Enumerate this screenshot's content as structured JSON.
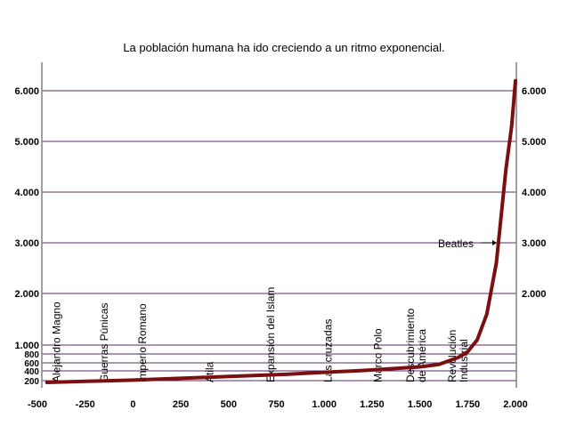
{
  "chart_data": {
    "type": "line",
    "title": "La población humana ha ido creciendo a un ritmo exponencial.",
    "xlabel": "",
    "ylabel": "",
    "xlim": [
      -500,
      2000
    ],
    "ylim": [
      0,
      6300
    ],
    "x_ticks": [
      -500,
      -250,
      0,
      250,
      500,
      750,
      1000,
      1250,
      1500,
      1750,
      2000
    ],
    "x_tick_labels": [
      "-500",
      "-250",
      "0",
      "250",
      "500",
      "750",
      "1.000",
      "1.250",
      "1.500",
      "1.750",
      "2.000"
    ],
    "y_ticks_major": [
      {
        "value": 6000,
        "label": "6.000"
      },
      {
        "value": 5000,
        "label": "5.000"
      },
      {
        "value": 4000,
        "label": "4.000"
      },
      {
        "value": 3000,
        "label": "3.000"
      },
      {
        "value": 2000,
        "label": "2.000"
      },
      {
        "value": 1000,
        "label": "1.000"
      }
    ],
    "y_ticks_minor": [
      {
        "value": 800,
        "label": "800"
      },
      {
        "value": 600,
        "label": "600"
      },
      {
        "value": 400,
        "label": "400"
      },
      {
        "value": 200,
        "label": "200"
      }
    ],
    "grid": true,
    "right_axis_labels": true,
    "series": [
      {
        "x": [
          -450,
          -250,
          0,
          200,
          400,
          600,
          800,
          1000,
          1200,
          1400,
          1500,
          1600,
          1700,
          1750,
          1800,
          1850,
          1900,
          1950,
          1980,
          2000
        ],
        "values": [
          150,
          180,
          210,
          240,
          270,
          300,
          330,
          370,
          410,
          470,
          500,
          560,
          720,
          850,
          1100,
          1600,
          2600,
          4450,
          5300,
          6200
        ],
        "color": "#7a0e10"
      }
    ],
    "annotations": [
      {
        "text": "Alejandro Magno",
        "x": -400
      },
      {
        "text": "Guerras Púnicas",
        "x": -150
      },
      {
        "text": "Imperio Romano",
        "x": 50
      },
      {
        "text": "Atila",
        "x": 400
      },
      {
        "text": "Expansión del Islam",
        "x": 720
      },
      {
        "text": "Las cruzadas",
        "x": 1020
      },
      {
        "text": "Marco Polo",
        "x": 1280
      },
      {
        "text": "Descubrimiento",
        "x": 1480
      },
      {
        "text": "de América",
        "x": 1480
      },
      {
        "text": "Revolución",
        "x": 1700
      },
      {
        "text": "Industrial",
        "x": 1700
      }
    ],
    "callout": {
      "text": "Beatles",
      "x": 1950,
      "y": 3000
    }
  }
}
